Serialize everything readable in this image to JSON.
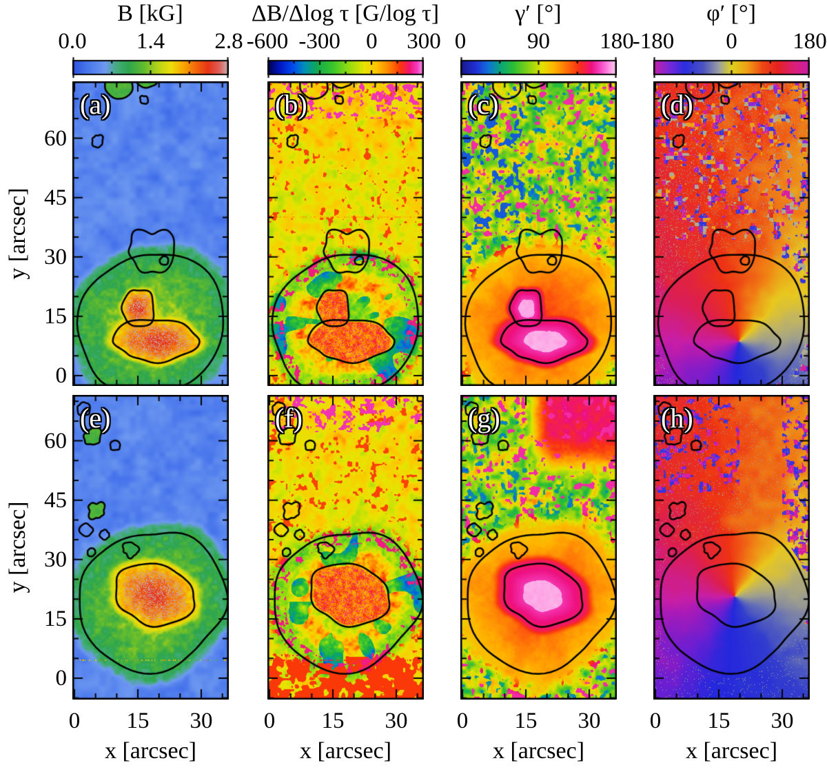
{
  "colorbars": [
    {
      "title": "B [kG]",
      "ticks": [
        "0.0",
        "1.4",
        "2.8"
      ],
      "gradient_stops": [
        [
          0,
          "#2b52e0"
        ],
        [
          0.1,
          "#4a78ec"
        ],
        [
          0.21,
          "#6e99f0"
        ],
        [
          0.28,
          "#46ac7e"
        ],
        [
          0.36,
          "#2ea64e"
        ],
        [
          0.46,
          "#63bc2e"
        ],
        [
          0.55,
          "#b8d41a"
        ],
        [
          0.63,
          "#eede0a"
        ],
        [
          0.71,
          "#f7a802"
        ],
        [
          0.79,
          "#f2680c"
        ],
        [
          0.87,
          "#e73417"
        ],
        [
          0.94,
          "#df5e58"
        ],
        [
          1,
          "#c9b4b4"
        ]
      ]
    },
    {
      "title": "ΔB/Δlog τ [G/log τ]",
      "ticks": [
        "-600",
        "-300",
        "0",
        "300"
      ],
      "gradient_stops": [
        [
          0,
          "#00004f"
        ],
        [
          0.08,
          "#0018c4"
        ],
        [
          0.16,
          "#004af0"
        ],
        [
          0.24,
          "#0092b4"
        ],
        [
          0.32,
          "#12aa4e"
        ],
        [
          0.42,
          "#3cc62c"
        ],
        [
          0.52,
          "#92dc10"
        ],
        [
          0.62,
          "#e8e400"
        ],
        [
          0.7,
          "#ffc400"
        ],
        [
          0.78,
          "#ff8200"
        ],
        [
          0.85,
          "#fa3808"
        ],
        [
          0.91,
          "#f01472"
        ],
        [
          0.96,
          "#f23cc2"
        ],
        [
          1,
          "#ff9ce6"
        ]
      ]
    },
    {
      "title": "γ′ [°]",
      "ticks": [
        "0",
        "90",
        "180"
      ],
      "gradient_stops": [
        [
          0,
          "#181888"
        ],
        [
          0.1,
          "#2030d8"
        ],
        [
          0.18,
          "#1074d8"
        ],
        [
          0.26,
          "#0aa876"
        ],
        [
          0.34,
          "#2cbe34"
        ],
        [
          0.44,
          "#8cd414"
        ],
        [
          0.52,
          "#e2e200"
        ],
        [
          0.6,
          "#ffb400"
        ],
        [
          0.68,
          "#ff7008"
        ],
        [
          0.76,
          "#f93014"
        ],
        [
          0.84,
          "#ee1080"
        ],
        [
          0.9,
          "#f648c8"
        ],
        [
          0.95,
          "#fc8ee2"
        ],
        [
          1,
          "#ffd4ee"
        ]
      ]
    },
    {
      "title": "φ′ [°]",
      "ticks": [
        "-180",
        "0",
        "180"
      ],
      "gradient_stops": [
        [
          0,
          "#c81ea6"
        ],
        [
          0.1,
          "#7a28d8"
        ],
        [
          0.2,
          "#2c2ce0"
        ],
        [
          0.32,
          "#4c54c0"
        ],
        [
          0.42,
          "#9ca0a0"
        ],
        [
          0.5,
          "#ded21e"
        ],
        [
          0.6,
          "#f0a014"
        ],
        [
          0.7,
          "#ee4614"
        ],
        [
          0.8,
          "#e42222"
        ],
        [
          0.9,
          "#dc1e78"
        ],
        [
          1,
          "#c81ea6"
        ]
      ]
    }
  ],
  "axes": {
    "x_label": "x [arcsec]",
    "x_ticks": [
      "0",
      "15",
      "30"
    ],
    "y_label": "y [arcsec]",
    "y_ticks": [
      "60",
      "45",
      "30",
      "15",
      "0"
    ]
  },
  "panel_labels": [
    "(a)",
    "(b)",
    "(c)",
    "(d)",
    "(e)",
    "(f)",
    "(g)",
    "(h)"
  ],
  "chart_data": {
    "type": "heatmap",
    "layout": {
      "rows": 2,
      "cols": 4,
      "shared_axes": true,
      "panel_order": [
        "(a)",
        "(b)",
        "(c)",
        "(d)",
        "(e)",
        "(f)",
        "(g)",
        "(h)"
      ]
    },
    "x_axis": {
      "label": "x [arcsec]",
      "ticks": [
        0,
        15,
        30
      ],
      "range": [
        0,
        37
      ]
    },
    "y_axis": {
      "label": "y [arcsec]",
      "ticks": [
        0,
        15,
        30,
        45,
        60
      ],
      "range": [
        0,
        73
      ]
    },
    "columns": [
      {
        "panel_top": "(a)",
        "panel_bottom": "(e)",
        "quantity": "magnetic field strength B",
        "units": "kG",
        "scale_min": 0.0,
        "scale_max": 2.8,
        "scale_ticks": [
          0.0,
          1.4,
          2.8
        ],
        "palette": "blue-green-yellow-orange-red-gray"
      },
      {
        "panel_top": "(b)",
        "panel_bottom": "(f)",
        "quantity": "magnetic field gradient ΔB/Δlog τ",
        "units": "G/log τ",
        "scale_min": -600,
        "scale_max": 300,
        "scale_ticks": [
          -600,
          -300,
          0,
          300
        ],
        "palette": "darkblue-blue-green-yellow-orange-red-magenta-pink"
      },
      {
        "panel_top": "(c)",
        "panel_bottom": "(g)",
        "quantity": "field inclination γ′",
        "units": "deg",
        "scale_min": 0,
        "scale_max": 180,
        "scale_ticks": [
          0,
          90,
          180
        ],
        "palette": "darkblue-green-yellow-orange-red-magenta-white"
      },
      {
        "panel_top": "(d)",
        "panel_bottom": "(h)",
        "quantity": "field azimuth φ′",
        "units": "deg",
        "scale_min": -180,
        "scale_max": 180,
        "scale_ticks": [
          -180,
          0,
          180
        ],
        "palette": "cyclic magenta-purple-blue-gray-yellow-orange-red-magenta"
      }
    ],
    "panels": [
      {
        "label": "(a)",
        "description": "Sunspot near (17,12) arcsec: quiet-Sun blue ~0.2-0.5 kG, green penumbra ~1 kG, yellow inner penumbra, red umbra 2-2.5 kG with gray-pink speckled core"
      },
      {
        "label": "(b)",
        "description": "Yellow-orange background; green penumbra with dark-blue radial streaks; red/magenta ring at umbral boundary; red speckled umbra"
      },
      {
        "label": "(c)",
        "description": "Noisy green/yellow/orange quiet Sun with blue and magenta patches; orange-red penumbra; magenta umbra with near-white core"
      },
      {
        "label": "(d)",
        "description": "Azimuth pinwheel around spot: magenta west, red north, yellow northeast, gray east, blue southeast/south, purple southwest; noisy red/blue/gray top"
      },
      {
        "label": "(e)",
        "description": "Same as (a) for second map: compact spot near (18,18) arcsec, blue quiet Sun, green penumbra, red umbra with gray speckled core"
      },
      {
        "label": "(f)",
        "description": "Yellow background; red-magenta ring around umbra; green streaked penumbra; red/magenta band south of spot"
      },
      {
        "label": "(g)",
        "description": "Orange-red radial penumbra; bright magenta umbra with whitish center; pink/magenta noisy region at top right"
      },
      {
        "label": "(h)",
        "description": "Azimuth pinwheel: magenta west, red north, yellow northeast, gray-blue east, blue south; blue/purple patches top-left and right edge"
      }
    ],
    "annotations": "Black contours on every panel outline the umbral and penumbral boundaries plus small pores north-west of the spot; contours are identical across the four panels of each row"
  }
}
